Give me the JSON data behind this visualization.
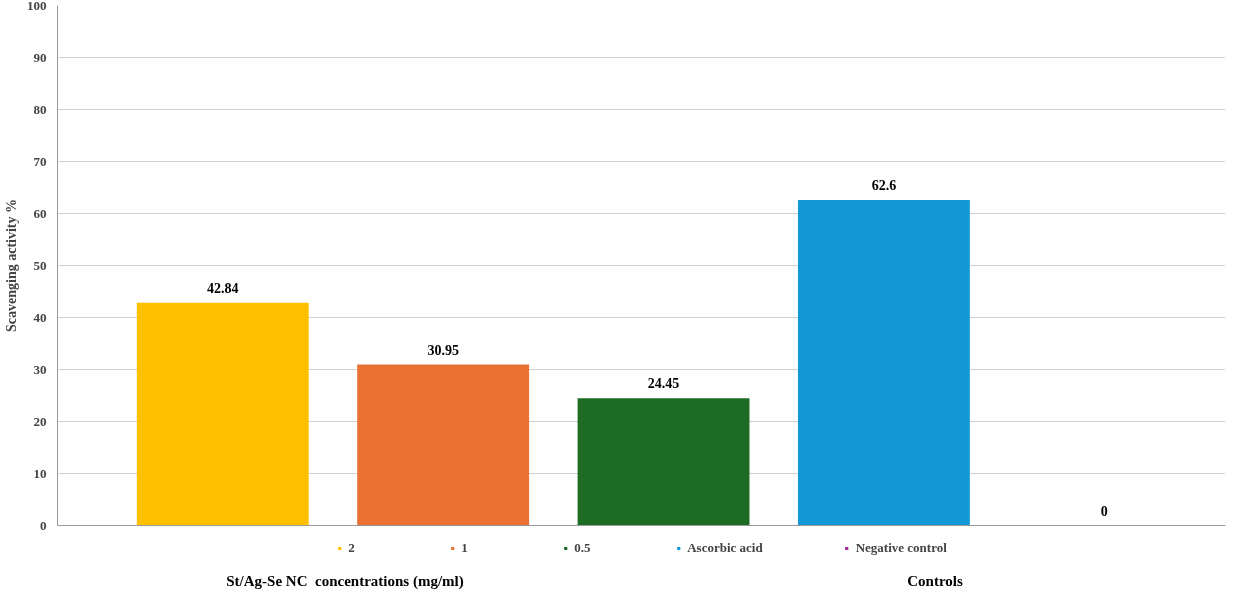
{
  "chart_data": {
    "type": "bar",
    "categories": [
      null,
      null,
      null,
      null,
      null
    ],
    "series": [
      {
        "name": "2",
        "color": "#ffc000",
        "values": [
          42.84,
          null,
          null,
          null,
          null
        ]
      },
      {
        "name": "1",
        "color": "#e97132",
        "values": [
          null,
          30.95,
          null,
          null,
          null
        ]
      },
      {
        "name": "0.5",
        "color": "#1e6b24",
        "values": [
          null,
          null,
          24.45,
          null,
          null
        ]
      },
      {
        "name": "Ascorbic acid",
        "color": "#139ad6",
        "values": [
          null,
          null,
          null,
          62.6,
          null
        ]
      },
      {
        "name": "Negative control",
        "color": "#a0289a",
        "values": [
          null,
          null,
          null,
          null,
          0
        ]
      }
    ],
    "ylabel": "Scavenging activity %",
    "ylim": [
      0,
      100
    ],
    "yticks": [
      0,
      10,
      20,
      30,
      40,
      50,
      60,
      70,
      80,
      90,
      100
    ],
    "grid": "y",
    "legend": "bottom",
    "data_labels": true,
    "annotations": [
      "St/Ag-Se NC  concentrations (mg/ml)",
      "Controls"
    ]
  }
}
